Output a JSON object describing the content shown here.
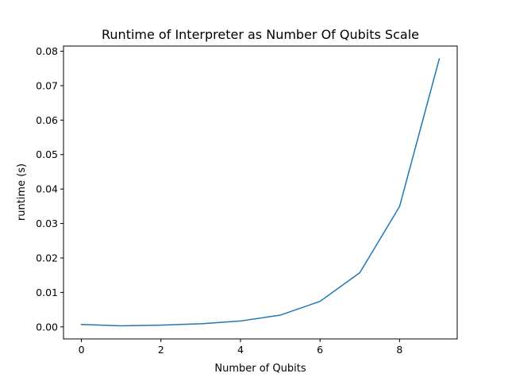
{
  "chart_data": {
    "type": "line",
    "title": "Runtime of Interpreter as Number Of Qubits Scale",
    "xlabel": "Number of Qubits",
    "ylabel": "runtime (s)",
    "xlim": [
      -0.45,
      9.45
    ],
    "ylim": [
      -0.0035,
      0.0815
    ],
    "x_ticks": [
      0,
      2,
      4,
      6,
      8
    ],
    "x_tick_labels": [
      "0",
      "2",
      "4",
      "6",
      "8"
    ],
    "y_ticks": [
      0.0,
      0.01,
      0.02,
      0.03,
      0.04,
      0.05,
      0.06,
      0.07,
      0.08
    ],
    "y_tick_labels": [
      "0.00",
      "0.01",
      "0.02",
      "0.03",
      "0.04",
      "0.05",
      "0.06",
      "0.07",
      "0.08"
    ],
    "grid": false,
    "legend": "none",
    "series": [
      {
        "color": "#1f77b4",
        "x": [
          0,
          1,
          2,
          3,
          4,
          5,
          6,
          7,
          8,
          9
        ],
        "y": [
          0.0007,
          0.0003,
          0.0005,
          0.0009,
          0.0017,
          0.0034,
          0.0074,
          0.0157,
          0.0349,
          0.0778
        ]
      }
    ]
  }
}
